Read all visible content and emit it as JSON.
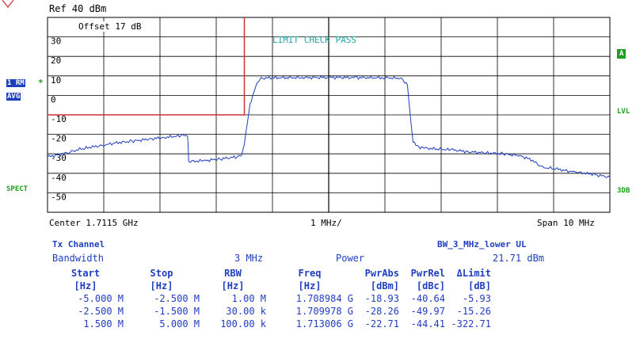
{
  "header": {
    "ref_level": "Ref  40 dBm",
    "offset": "Offset  17 dB",
    "limit_check": "LIMIT CHECK   PASS"
  },
  "left_labels": {
    "trace": "1 RM",
    "trace_star": "*",
    "avg": "AVG",
    "spect": "SPECT"
  },
  "right_labels": {
    "a": "A",
    "lvl": "LVL",
    "db3": "3DB"
  },
  "y_axis": {
    "ticks": [
      "30",
      "20",
      "10",
      "0",
      "-10",
      "-20",
      "-30",
      "-40",
      "-50"
    ]
  },
  "footer": {
    "center": "Center 1.7115 GHz",
    "div": "1 MHz/",
    "span": "Span 10 MHz"
  },
  "results": {
    "title": "Tx Channel",
    "standard": "BW_3_MHz_lower UL",
    "bandwidth_label": "Bandwidth",
    "bandwidth_value": "3 MHz",
    "power_label": "Power",
    "power_value": "21.71 dBm",
    "columns": [
      "Start",
      "Stop",
      "RBW",
      "Freq",
      "PwrAbs",
      "PwrRel",
      "ΔLimit"
    ],
    "units": [
      "[Hz]",
      "[Hz]",
      "[Hz]",
      "[Hz]",
      "[dBm]",
      "[dBc]",
      "[dB]"
    ],
    "rows": [
      [
        "-5.000 M",
        "-2.500 M",
        "1.00 M",
        "1.708984 G",
        "-18.93",
        "-40.64",
        "-5.93"
      ],
      [
        "-2.500 M",
        "-1.500 M",
        "30.00 k",
        "1.709978 G",
        "-28.26",
        "-49.97",
        "-15.26"
      ],
      [
        "1.500 M",
        "5.000 M",
        "100.00 k",
        "1.713006 G",
        "-22.71",
        "-44.41",
        "-322.71"
      ]
    ]
  },
  "chart_data": {
    "type": "line",
    "xlabel": "",
    "ylabel": "",
    "x_unit": "MHz offset from center",
    "xlim": [
      -5,
      5
    ],
    "ylim": [
      -60,
      40
    ],
    "grid": true,
    "series": [
      {
        "color": "#1f3fbf",
        "x": [
          -5.0,
          -4.8,
          -4.6,
          -4.4,
          -4.2,
          -4.0,
          -3.8,
          -3.5,
          -3.2,
          -2.9,
          -2.6,
          -2.51,
          -2.5,
          -2.49,
          -2.2,
          -1.9,
          -1.6,
          -1.55,
          -1.5,
          -1.45,
          -1.4,
          -1.3,
          -1.2,
          -1.0,
          -0.5,
          0,
          0.5,
          1.0,
          1.3,
          1.4,
          1.45,
          1.5,
          1.6,
          1.7,
          1.9,
          2.2,
          2.5,
          2.8,
          3.1,
          3.4,
          3.6,
          3.8,
          4.0,
          4.2,
          4.4,
          4.6,
          4.8,
          5.0
        ],
        "y": [
          -31.5,
          -30.5,
          -29,
          -27.5,
          -26.5,
          -25.5,
          -24.5,
          -23.5,
          -22.5,
          -21.5,
          -20.7,
          -20.5,
          -25,
          -34,
          -33.5,
          -32.5,
          -31.5,
          -30.5,
          -25,
          -15,
          -5,
          5,
          8.8,
          9,
          9.1,
          9.2,
          9.1,
          9,
          8.8,
          5,
          -10,
          -24,
          -26.5,
          -27,
          -27.5,
          -28,
          -29,
          -29.5,
          -30,
          -31,
          -33,
          -37,
          -37.5,
          -38.5,
          -39.5,
          -40,
          -41,
          -42
        ]
      }
    ],
    "limit_line": {
      "color": "#d03030",
      "x": [
        -5.0,
        -1.5,
        -1.5
      ],
      "y": [
        -10,
        -10,
        40
      ]
    }
  }
}
